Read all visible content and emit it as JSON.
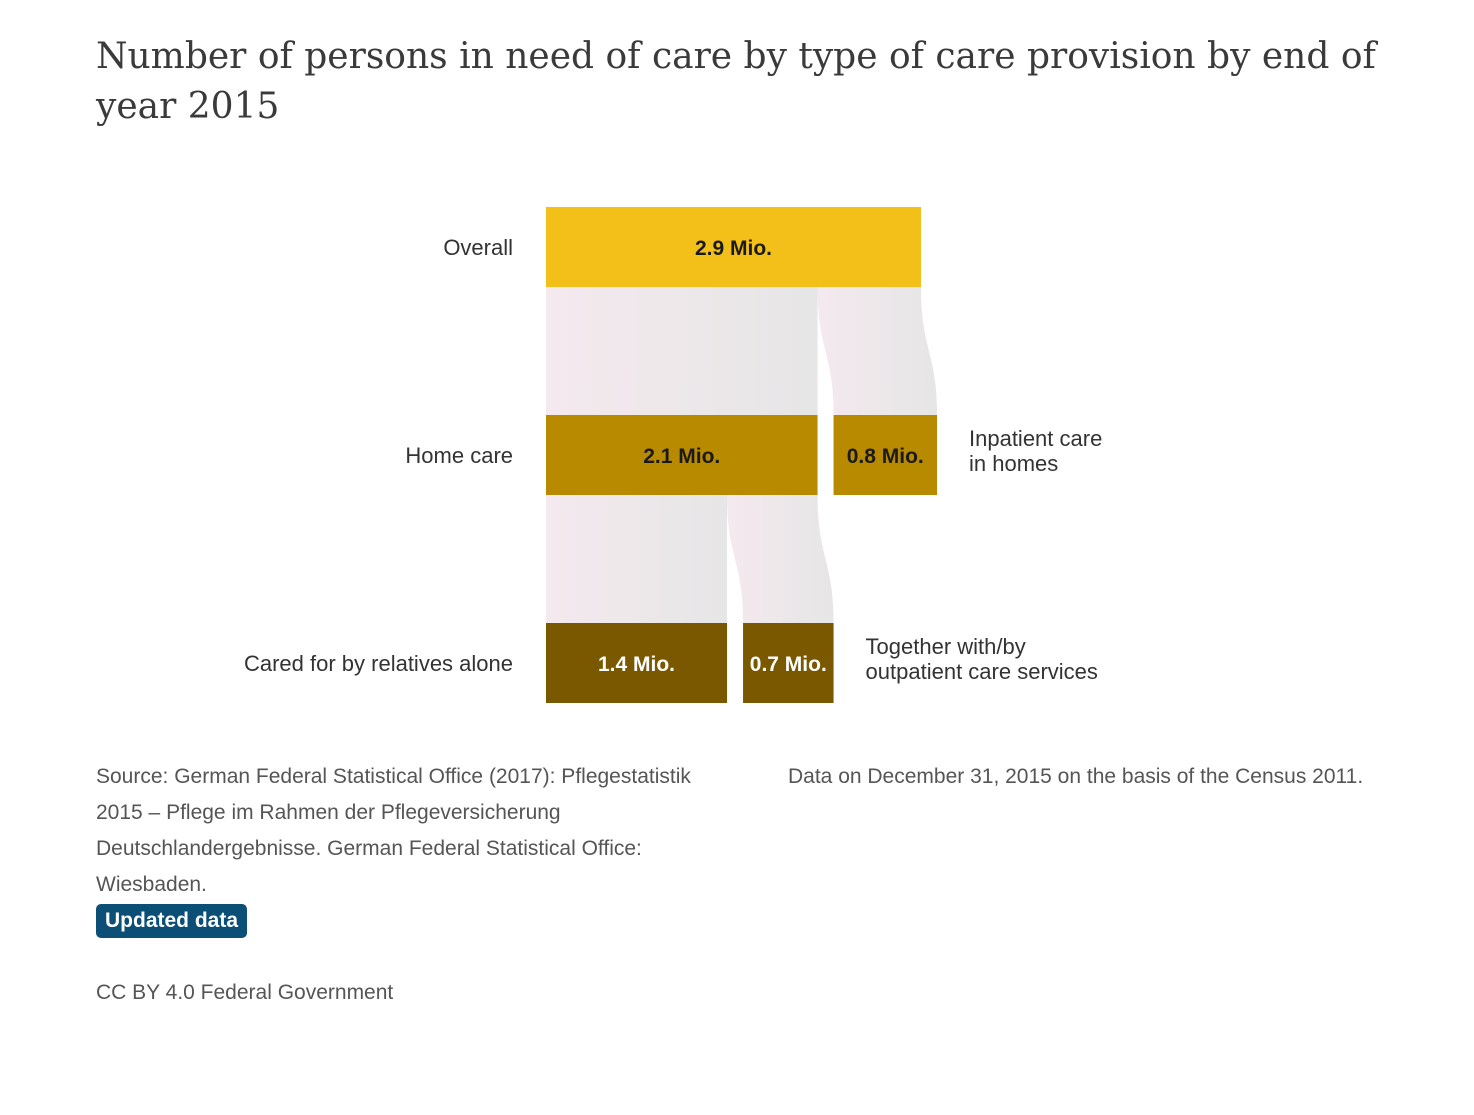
{
  "title": "Number of persons in need of care by type of care provision by end of year 2015",
  "chart_data": {
    "type": "sankey",
    "unit": "Mio.",
    "nodes": [
      {
        "id": "overall",
        "level": 0,
        "row_label": "Overall",
        "value": 2.9,
        "value_label": "2.9 Mio.",
        "color": "#f2c018",
        "text_color": "#1a1a1a"
      },
      {
        "id": "home",
        "level": 1,
        "row_label": "Home care",
        "value": 2.1,
        "value_label": "2.1 Mio.",
        "color": "#b88a00",
        "text_color": "#1a1a1a"
      },
      {
        "id": "inpatient",
        "level": 1,
        "side_label": [
          "Inpatient care",
          "in homes"
        ],
        "value": 0.8,
        "value_label": "0.8 Mio.",
        "color": "#b88a00",
        "text_color": "#1a1a1a"
      },
      {
        "id": "relatives",
        "level": 2,
        "row_label": "Cared for by relatives alone",
        "value": 1.4,
        "value_label": "1.4 Mio.",
        "color": "#7a5800",
        "text_color": "#ffffff"
      },
      {
        "id": "outpatient",
        "level": 2,
        "side_label": [
          "Together with/by",
          "outpatient care services"
        ],
        "value": 0.7,
        "value_label": "0.7 Mio.",
        "color": "#7a5800",
        "text_color": "#ffffff"
      }
    ],
    "links": [
      {
        "from": "overall",
        "to": "home",
        "value": 2.1
      },
      {
        "from": "overall",
        "to": "inpatient",
        "value": 0.8
      },
      {
        "from": "home",
        "to": "relatives",
        "value": 1.4
      },
      {
        "from": "home",
        "to": "outpatient",
        "value": 0.7
      }
    ]
  },
  "footer": {
    "source": "Source: German Federal Statistical Office (2017): Pflegestatistik 2015 – Pflege im Rahmen der Pflegeversicherung Deutschlandergebnisse. German Federal Statistical Office: Wiesbaden.",
    "note": "Data on December 31, 2015 on the basis of the Census 2011.",
    "badge": "Updated data",
    "license": "CC BY 4.0 Federal Government"
  }
}
